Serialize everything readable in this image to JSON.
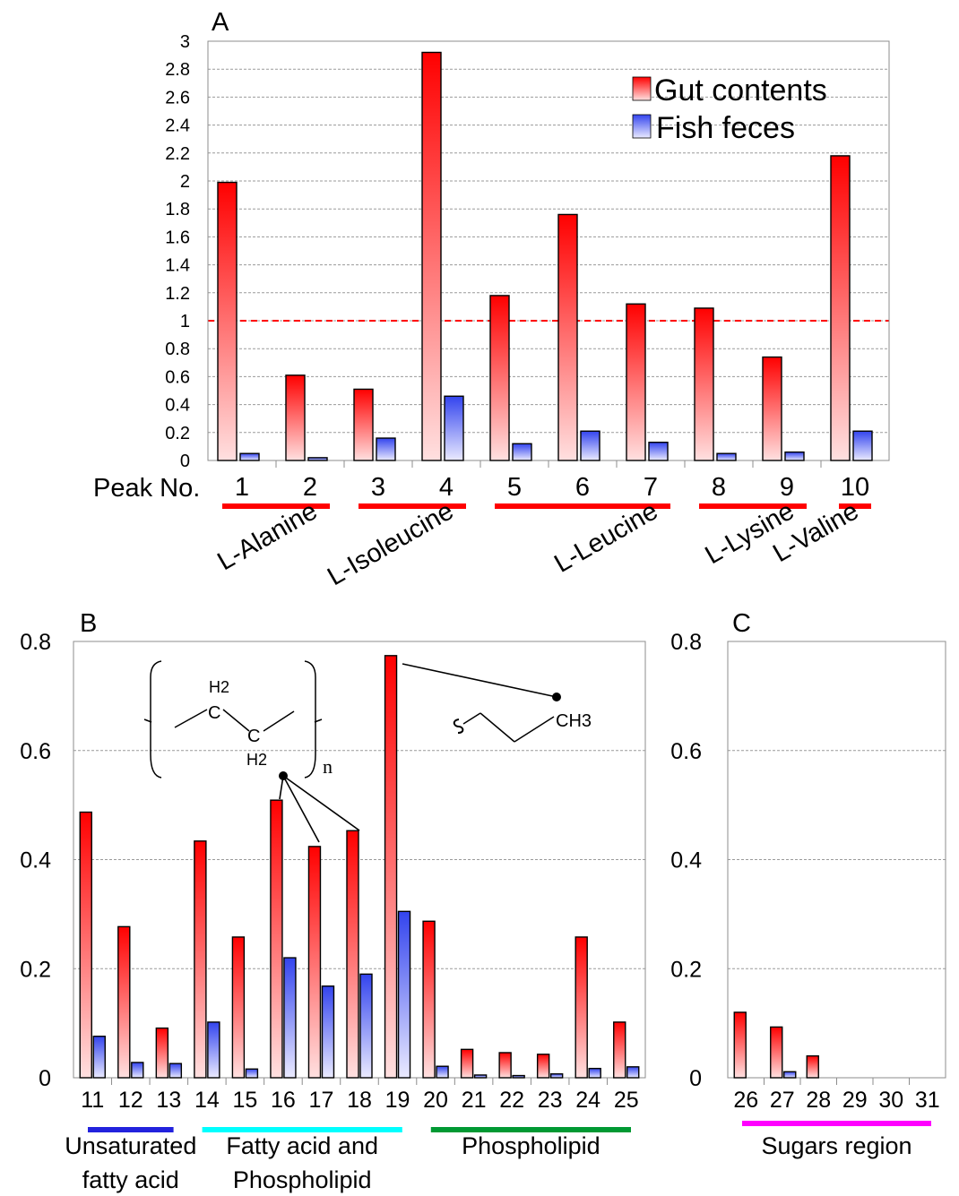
{
  "colors": {
    "gut_top": "#ff0000",
    "gut_bottom": "#ffe0e0",
    "feces_top": "#3344ee",
    "feces_bottom": "#eaeaff",
    "threshold": "#ff0000",
    "grid": "#9a9a9a",
    "chem_red": "#ff0000",
    "group_red": "#ff0000",
    "group_blue": "#2222dd",
    "group_cyan": "#00ffff",
    "group_green": "#009933",
    "group_magenta": "#ff00ff"
  },
  "chart_data": [
    {
      "panel": "A",
      "type": "bar",
      "categories": [
        "1",
        "2",
        "3",
        "4",
        "5",
        "6",
        "7",
        "8",
        "9",
        "10"
      ],
      "series": [
        {
          "name": "Gut contents",
          "values": [
            1.99,
            0.61,
            0.51,
            2.92,
            1.18,
            1.76,
            1.12,
            1.09,
            0.74,
            2.18
          ]
        },
        {
          "name": "Fish feces",
          "values": [
            0.05,
            0.02,
            0.16,
            0.46,
            0.12,
            0.21,
            0.13,
            0.05,
            0.06,
            0.21
          ]
        }
      ],
      "ylim": [
        0,
        3
      ],
      "yticks": [
        "0",
        "0.2",
        "0.4",
        "0.6",
        "0.8",
        "1",
        "1.2",
        "1.4",
        "1.6",
        "1.8",
        "2",
        "2.2",
        "2.4",
        "2.6",
        "2.8",
        "3"
      ],
      "threshold": 1,
      "x_prefix": "Peak No.",
      "grid": true,
      "legend": "top-right",
      "groups": [
        {
          "label": "L-Alanine",
          "from": 1,
          "to": 2,
          "color": "group_red"
        },
        {
          "label": "L-Isoleucine",
          "from": 3,
          "to": 4,
          "color": "group_red"
        },
        {
          "label": "L-Leucine",
          "from": 5,
          "to": 7,
          "color": "group_red"
        },
        {
          "label": "L-Lysine",
          "from": 8,
          "to": 9,
          "color": "group_red"
        },
        {
          "label": "L-Valine",
          "from": 10,
          "to": 10,
          "color": "group_red"
        }
      ]
    },
    {
      "panel": "B",
      "type": "bar",
      "categories": [
        "11",
        "12",
        "13",
        "14",
        "15",
        "16",
        "17",
        "18",
        "19",
        "20",
        "21",
        "22",
        "23",
        "24",
        "25"
      ],
      "series": [
        {
          "name": "Gut contents",
          "values": [
            0.487,
            0.277,
            0.091,
            0.434,
            0.258,
            0.509,
            0.424,
            0.453,
            0.774,
            0.287,
            0.052,
            0.046,
            0.043,
            0.258,
            0.102
          ]
        },
        {
          "name": "Fish feces",
          "values": [
            0.076,
            0.028,
            0.026,
            0.102,
            0.016,
            0.22,
            0.168,
            0.19,
            0.305,
            0.021,
            0.005,
            0.004,
            0.007,
            0.017,
            0.02
          ]
        }
      ],
      "ylim": [
        0,
        0.8
      ],
      "yticks": [
        "0",
        "0.2",
        "0.4",
        "0.6",
        "0.8"
      ],
      "grid": true,
      "groups": [
        {
          "label": "Unsaturated fatty acid",
          "lines": [
            "Unsaturated",
            "fatty acid"
          ],
          "from": 11,
          "to": 13,
          "color": "group_blue"
        },
        {
          "label": "Fatty acid and Phospholipid",
          "lines": [
            "Fatty acid and",
            "Phospholipid"
          ],
          "from": 14,
          "to": 19,
          "color": "group_cyan"
        },
        {
          "label": "Phospholipid",
          "lines": [
            "Phospholipid"
          ],
          "from": 20,
          "to": 25,
          "color": "group_green"
        }
      ]
    },
    {
      "panel": "C",
      "type": "bar",
      "categories": [
        "26",
        "27",
        "28",
        "29",
        "30",
        "31"
      ],
      "series": [
        {
          "name": "Gut contents",
          "values": [
            0.12,
            0.093,
            0.04,
            0,
            0,
            0
          ]
        },
        {
          "name": "Fish feces",
          "values": [
            0,
            0.011,
            0,
            0,
            0,
            0
          ]
        }
      ],
      "ylim": [
        0,
        0.8
      ],
      "yticks": [
        "0",
        "0.2",
        "0.4",
        "0.6",
        "0.8"
      ],
      "grid": true,
      "groups": [
        {
          "label": "Sugars region",
          "lines": [
            "Sugars region"
          ],
          "from": 26,
          "to": 31,
          "color": "group_magenta"
        }
      ]
    }
  ],
  "structures": {
    "methylene": {
      "h2_top": "H2",
      "c1": "C",
      "c2": "C",
      "h2_bottom": "H2",
      "subscript": "n"
    },
    "methyl": {
      "label": "CH3"
    }
  }
}
